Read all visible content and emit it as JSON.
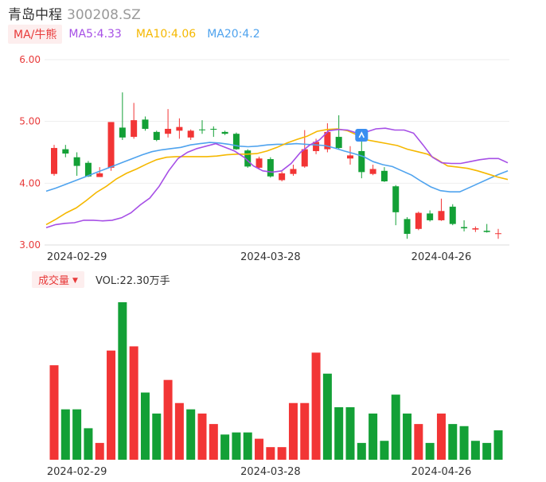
{
  "header": {
    "name": "青岛中程",
    "code": "300208.SZ"
  },
  "ma_legend": {
    "toggle": "MA/牛熊",
    "ma5": "MA5:4.33",
    "ma10": "MA10:4.06",
    "ma20": "MA20:4.2"
  },
  "volume_legend": {
    "toggle": "成交量",
    "caret": "▼",
    "text": "VOL:22.30万手"
  },
  "colors": {
    "up": "#f23535",
    "down": "#13a036",
    "ma5": "#a64fe6",
    "ma10": "#f5b800",
    "ma20": "#4fa3ee",
    "axis_label": "#e83a3a",
    "grid": "#eeeeee"
  },
  "icons": {
    "marker": "info-marker-icon"
  },
  "chart_data": [
    {
      "type": "candlestick",
      "y_ticks": [
        "6.00",
        "5.00",
        "4.00",
        "3.00"
      ],
      "ylim": [
        3.0,
        6.0
      ],
      "x_tick_labels": [
        {
          "index": 2,
          "label": "2024-02-29"
        },
        {
          "index": 19,
          "label": "2024-03-28"
        },
        {
          "index": 34,
          "label": "2024-04-26"
        }
      ],
      "candles": [
        {
          "o": 4.15,
          "c": 4.57,
          "h": 4.62,
          "l": 4.12
        },
        {
          "o": 4.55,
          "c": 4.48,
          "h": 4.62,
          "l": 4.42
        },
        {
          "o": 4.42,
          "c": 4.28,
          "h": 4.5,
          "l": 4.12
        },
        {
          "o": 4.33,
          "c": 4.11,
          "h": 4.36,
          "l": 4.1
        },
        {
          "o": 4.1,
          "c": 4.16,
          "h": 4.26,
          "l": 4.1
        },
        {
          "o": 4.25,
          "c": 4.99,
          "h": 4.99,
          "l": 4.2
        },
        {
          "o": 4.9,
          "c": 4.74,
          "h": 5.47,
          "l": 4.7
        },
        {
          "o": 4.75,
          "c": 5.02,
          "h": 5.3,
          "l": 4.72
        },
        {
          "o": 5.03,
          "c": 4.88,
          "h": 5.08,
          "l": 4.85
        },
        {
          "o": 4.83,
          "c": 4.7,
          "h": 4.85,
          "l": 4.68
        },
        {
          "o": 4.8,
          "c": 4.88,
          "h": 5.2,
          "l": 4.74
        },
        {
          "o": 4.85,
          "c": 4.91,
          "h": 5.05,
          "l": 4.72
        },
        {
          "o": 4.74,
          "c": 4.85,
          "h": 4.87,
          "l": 4.7
        },
        {
          "o": 4.87,
          "c": 4.86,
          "h": 5.02,
          "l": 4.8
        },
        {
          "o": 4.88,
          "c": 4.87,
          "h": 4.92,
          "l": 4.75
        },
        {
          "o": 4.83,
          "c": 4.8,
          "h": 4.85,
          "l": 4.78
        },
        {
          "o": 4.8,
          "c": 4.55,
          "h": 4.82,
          "l": 4.54
        },
        {
          "o": 4.53,
          "c": 4.27,
          "h": 4.55,
          "l": 4.25
        },
        {
          "o": 4.25,
          "c": 4.4,
          "h": 4.43,
          "l": 4.22
        },
        {
          "o": 4.39,
          "c": 4.11,
          "h": 4.42,
          "l": 4.09
        },
        {
          "o": 4.05,
          "c": 4.16,
          "h": 4.19,
          "l": 4.03
        },
        {
          "o": 4.15,
          "c": 4.23,
          "h": 4.3,
          "l": 4.12
        },
        {
          "o": 4.27,
          "c": 4.55,
          "h": 4.86,
          "l": 4.25
        },
        {
          "o": 4.52,
          "c": 4.67,
          "h": 4.72,
          "l": 4.47
        },
        {
          "o": 4.55,
          "c": 4.83,
          "h": 4.97,
          "l": 4.5
        },
        {
          "o": 4.75,
          "c": 4.57,
          "h": 5.1,
          "l": 4.55
        },
        {
          "o": 4.4,
          "c": 4.45,
          "h": 4.6,
          "l": 4.3
        },
        {
          "o": 4.52,
          "c": 4.18,
          "h": 4.68,
          "l": 4.08
        },
        {
          "o": 4.15,
          "c": 4.23,
          "h": 4.3,
          "l": 4.13
        },
        {
          "o": 4.2,
          "c": 4.03,
          "h": 4.26,
          "l": 4.02
        },
        {
          "o": 3.95,
          "c": 3.53,
          "h": 3.97,
          "l": 3.32
        },
        {
          "o": 3.42,
          "c": 3.18,
          "h": 3.45,
          "l": 3.1
        },
        {
          "o": 3.26,
          "c": 3.52,
          "h": 3.54,
          "l": 3.24
        },
        {
          "o": 3.51,
          "c": 3.4,
          "h": 3.56,
          "l": 3.38
        },
        {
          "o": 3.4,
          "c": 3.55,
          "h": 3.75,
          "l": 3.39
        },
        {
          "o": 3.62,
          "c": 3.34,
          "h": 3.66,
          "l": 3.32
        },
        {
          "o": 3.29,
          "c": 3.27,
          "h": 3.4,
          "l": 3.22
        },
        {
          "o": 3.25,
          "c": 3.27,
          "h": 3.3,
          "l": 3.21
        },
        {
          "o": 3.23,
          "c": 3.21,
          "h": 3.34,
          "l": 3.2
        },
        {
          "o": 3.18,
          "c": 3.19,
          "h": 3.26,
          "l": 3.1
        }
      ],
      "ma5": [
        3.28,
        3.33,
        3.35,
        3.36,
        3.4,
        3.4,
        3.39,
        3.4,
        3.44,
        3.52,
        3.65,
        3.76,
        3.95,
        4.2,
        4.4,
        4.5,
        4.56,
        4.6,
        4.64,
        4.58,
        4.52,
        4.42,
        4.28,
        4.2,
        4.18,
        4.2,
        4.32,
        4.5,
        4.62,
        4.7,
        4.85,
        4.87,
        4.86,
        4.81,
        4.83,
        4.88,
        4.89,
        4.86,
        4.86,
        4.81,
        4.62,
        4.42,
        4.33,
        4.32,
        4.32,
        4.35,
        4.38,
        4.4,
        4.4,
        4.33
      ],
      "ma10": [
        3.33,
        3.42,
        3.52,
        3.6,
        3.72,
        3.85,
        3.95,
        4.07,
        4.16,
        4.23,
        4.31,
        4.38,
        4.42,
        4.43,
        4.43,
        4.43,
        4.43,
        4.44,
        4.46,
        4.47,
        4.47,
        4.48,
        4.52,
        4.58,
        4.65,
        4.71,
        4.76,
        4.84,
        4.87,
        4.88,
        4.85,
        4.78,
        4.7,
        4.67,
        4.64,
        4.61,
        4.55,
        4.51,
        4.47,
        4.38,
        4.28,
        4.26,
        4.24,
        4.2,
        4.15,
        4.1,
        4.06
      ],
      "ma20": [
        3.87,
        3.92,
        3.98,
        4.04,
        4.1,
        4.16,
        4.22,
        4.28,
        4.34,
        4.4,
        4.46,
        4.51,
        4.54,
        4.56,
        4.58,
        4.62,
        4.64,
        4.66,
        4.65,
        4.63,
        4.6,
        4.59,
        4.6,
        4.62,
        4.63,
        4.63,
        4.64,
        4.63,
        4.62,
        4.61,
        4.57,
        4.52,
        4.48,
        4.43,
        4.35,
        4.3,
        4.27,
        4.2,
        4.13,
        4.03,
        3.94,
        3.88,
        3.86,
        3.86,
        3.93,
        4.0,
        4.07,
        4.14,
        4.2
      ]
    },
    {
      "type": "bar",
      "title": "成交量",
      "volumes": [
        45,
        24,
        24,
        15,
        8,
        52,
        75,
        54,
        32,
        22,
        38,
        27,
        24,
        22,
        17,
        12,
        13,
        13,
        10,
        6,
        6,
        27,
        27,
        51,
        41,
        25,
        25,
        8,
        22,
        9,
        31,
        22,
        17,
        8,
        22,
        17,
        16,
        9,
        8,
        14
      ],
      "directions": [
        "up",
        "down",
        "down",
        "down",
        "up",
        "up",
        "down",
        "up",
        "down",
        "down",
        "up",
        "up",
        "down",
        "up",
        "up",
        "down",
        "down",
        "down",
        "up",
        "up",
        "up",
        "up",
        "up",
        "up",
        "down",
        "down",
        "down",
        "down",
        "down",
        "down",
        "down",
        "down",
        "up",
        "down",
        "up",
        "down",
        "down",
        "down",
        "down",
        "down"
      ]
    }
  ]
}
